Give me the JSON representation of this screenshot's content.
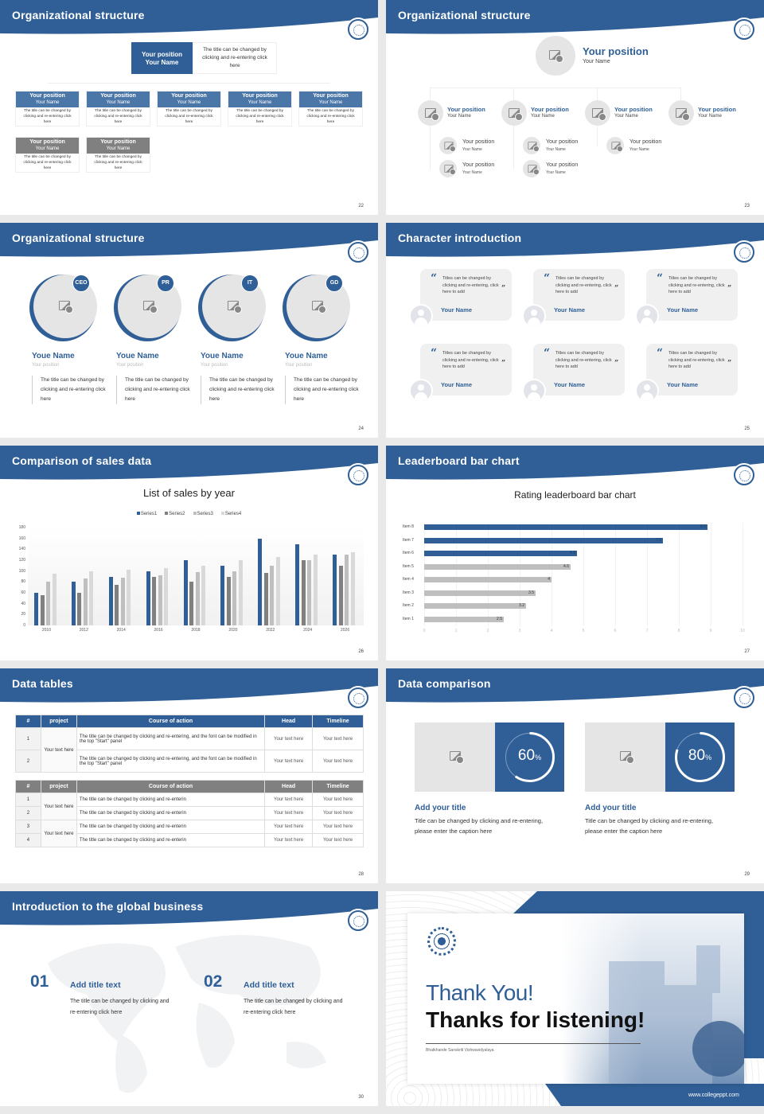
{
  "colors": {
    "primary": "#2f5f96",
    "secondary": "#808080",
    "light": "#e6e5e5",
    "series3": "#bfbfbf",
    "series4": "#d9d9d9"
  },
  "s22": {
    "title": "Organizational structure",
    "page": "22",
    "top": {
      "position": "Your position",
      "name": "Your Name",
      "desc": "The title can be changed by clicking and re-entering click here"
    },
    "cards": [
      {
        "position": "Your position",
        "name": "Your Name",
        "desc": "The title can be changed by clicking and re-entering click here",
        "tone": "blue"
      },
      {
        "position": "Your position",
        "name": "Your Name",
        "desc": "The title can be changed by clicking and re-entering click here",
        "tone": "blue"
      },
      {
        "position": "Your position",
        "name": "Your Name",
        "desc": "The title can be changed by clicking and re-entering click here",
        "tone": "blue"
      },
      {
        "position": "Your position",
        "name": "Your Name",
        "desc": "The title can be changed by clicking and re-entering click here",
        "tone": "blue"
      },
      {
        "position": "Your position",
        "name": "Your Name",
        "desc": "The title can be changed by clicking and re-entering click here",
        "tone": "blue"
      },
      {
        "position": "Your position",
        "name": "Your Name",
        "desc": "The title can be changed by clicking and re-entering click here",
        "tone": "gray"
      },
      {
        "position": "Your position",
        "name": "Your Name",
        "desc": "The title can be changed by clicking and re-entering click here",
        "tone": "gray"
      }
    ]
  },
  "s23": {
    "title": "Organizational structure",
    "page": "23",
    "top": {
      "position": "Your position",
      "name": "Your Name"
    },
    "members": [
      {
        "position": "Your position",
        "name": "Your Name"
      },
      {
        "position": "Your position",
        "name": "Your Name"
      },
      {
        "position": "Your position",
        "name": "Your Name"
      },
      {
        "position": "Your position",
        "name": "Your Name"
      }
    ],
    "subs": [
      [
        {
          "position": "Your position",
          "name": "Your Name"
        },
        {
          "position": "Your position",
          "name": "Your Name"
        }
      ],
      [
        {
          "position": "Your position",
          "name": "Your Name"
        },
        {
          "position": "Your position",
          "name": "Your Name"
        }
      ],
      [
        {
          "position": "Your position",
          "name": "Your Name"
        }
      ],
      []
    ]
  },
  "s24": {
    "title": "Organizational structure",
    "page": "24",
    "people": [
      {
        "badge": "CEO",
        "name": "Youe Name",
        "position": "Your position",
        "desc": "The title can be changed by clicking and re-entering click here"
      },
      {
        "badge": "PR",
        "name": "Youe Name",
        "position": "Your position",
        "desc": "The title can be changed by clicking and re-entering click here"
      },
      {
        "badge": "IT",
        "name": "Youe Name",
        "position": "Your position",
        "desc": "The title can be changed by clicking and re-entering click here"
      },
      {
        "badge": "GD",
        "name": "Youe Name",
        "position": "Your position",
        "desc": "The title can be changed by clicking and re-entering click here"
      }
    ]
  },
  "s25": {
    "title": "Character introduction",
    "page": "25",
    "quotes": [
      {
        "text": "Titles can be changed by clicking and re-entering, click here to add",
        "name": "Your Name"
      },
      {
        "text": "Titles can be changed by clicking and re-entering, click here to add",
        "name": "Your Name"
      },
      {
        "text": "Titles can be changed by clicking and re-entering, click here to add",
        "name": "Your Name"
      },
      {
        "text": "Titles can be changed by clicking and re-entering, click here to add",
        "name": "Your Name"
      },
      {
        "text": "Titles can be changed by clicking and re-entering, click here to add",
        "name": "Your Name"
      },
      {
        "text": "Titles can be changed by clicking and re-entering, click here to add",
        "name": "Your Name"
      }
    ]
  },
  "s26": {
    "title": "Comparison of sales data",
    "page": "26"
  },
  "s27": {
    "title": "Leaderboard bar chart",
    "page": "27"
  },
  "chart_data": [
    {
      "type": "bar",
      "title": "List of sales by year",
      "categories": [
        "2010",
        "2012",
        "2014",
        "2016",
        "2018",
        "2020",
        "2022",
        "2024",
        "2026"
      ],
      "series": [
        {
          "name": "Series1",
          "values": [
            60,
            80,
            90,
            100,
            120,
            110,
            160,
            150,
            130
          ],
          "color": "#2f5f96"
        },
        {
          "name": "Series2",
          "values": [
            55,
            60,
            75,
            90,
            80,
            90,
            96,
            120,
            110
          ],
          "color": "#808080"
        },
        {
          "name": "Series3",
          "values": [
            80,
            86,
            88,
            92,
            98,
            100,
            110,
            120,
            130
          ],
          "color": "#bfbfbf"
        },
        {
          "name": "Series4",
          "values": [
            95,
            99,
            102,
            105,
            110,
            120,
            126,
            130,
            135
          ],
          "color": "#d9d9d9"
        }
      ],
      "ylim": [
        0,
        180
      ],
      "yticks": [
        "0",
        "20",
        "40",
        "60",
        "80",
        "100",
        "120",
        "140",
        "160",
        "180"
      ],
      "legend": "top"
    },
    {
      "type": "bar",
      "orientation": "horizontal",
      "title": "Rating leaderboard bar chart",
      "categories": [
        "Item 8",
        "Item 7",
        "Item 6",
        "Item 5",
        "Item 4",
        "Item 3",
        "Item 2",
        "Item 1"
      ],
      "values": [
        8.9,
        7.5,
        4.8,
        4.6,
        4,
        3.5,
        3.2,
        2.5
      ],
      "labels": [
        "8.9",
        "7.5",
        "4.8",
        "4.6",
        "4",
        "3.5",
        "3.2",
        "2.5"
      ],
      "highlight": [
        "#2f5f96",
        "#2f5f96",
        "#2f5f96",
        "#bfbfbf",
        "#bfbfbf",
        "#bfbfbf",
        "#bfbfbf",
        "#bfbfbf"
      ],
      "xlim": [
        0,
        10
      ],
      "xticks": [
        "0",
        "1",
        "2",
        "3",
        "4",
        "5",
        "6",
        "7",
        "8",
        "9",
        "10"
      ]
    }
  ],
  "s28": {
    "title": "Data tables",
    "page": "28",
    "headers": [
      "#",
      "project",
      "Course of action",
      "Head",
      "Timeline"
    ],
    "t1": {
      "project": "Your text here",
      "rows": [
        {
          "n": "1",
          "action": "The title can be changed by clicking and re-entering, and the font can be modified in the top \"Start\" panel",
          "head": "Your text here",
          "time": "Your text here"
        },
        {
          "n": "2",
          "action": "The title can be changed by clicking and re-entering, and the font can be modified in the top \"Start\" panel",
          "head": "Your text here",
          "time": "Your text here"
        }
      ]
    },
    "t2": {
      "projects": [
        "Your text here",
        "Your text here"
      ],
      "rows": [
        {
          "n": "1",
          "action": "The title can be changed by clicking and re-enterin",
          "head": "Your text here",
          "time": "Your text here"
        },
        {
          "n": "2",
          "action": "The title can be changed by clicking and re-enterin",
          "head": "Your text here",
          "time": "Your text here"
        },
        {
          "n": "3",
          "action": "The title can be changed by clicking and re-enterin",
          "head": "Your text here",
          "time": "Your text here"
        },
        {
          "n": "4",
          "action": "The title can be changed by clicking and re-enterin",
          "head": "Your text here",
          "time": "Your text here"
        }
      ]
    }
  },
  "s29": {
    "title": "Data comparison",
    "page": "29",
    "items": [
      {
        "value": "60",
        "unit": "%",
        "percent": 60,
        "title": "Add your title",
        "desc": "Title can be changed by clicking and re-entering, please enter the caption here"
      },
      {
        "value": "80",
        "unit": "%",
        "percent": 80,
        "title": "Add your title",
        "desc": "Title can be changed by clicking and re-entering, please enter the caption here"
      }
    ]
  },
  "s30": {
    "title": "Introduction to the global business",
    "page": "30",
    "items": [
      {
        "num": "01",
        "title": "Add title text",
        "desc": "The title can be changed by clicking and re-entering click here"
      },
      {
        "num": "02",
        "title": "Add title text",
        "desc": "The title can be changed by clicking and re-entering click here"
      }
    ]
  },
  "s31": {
    "line1": "Thank You!",
    "line2": "Thanks for listening!",
    "subtitle": "Bhatkhande Sanskriti Vishwavidyalaya",
    "website": "www.collegeppt.com"
  }
}
